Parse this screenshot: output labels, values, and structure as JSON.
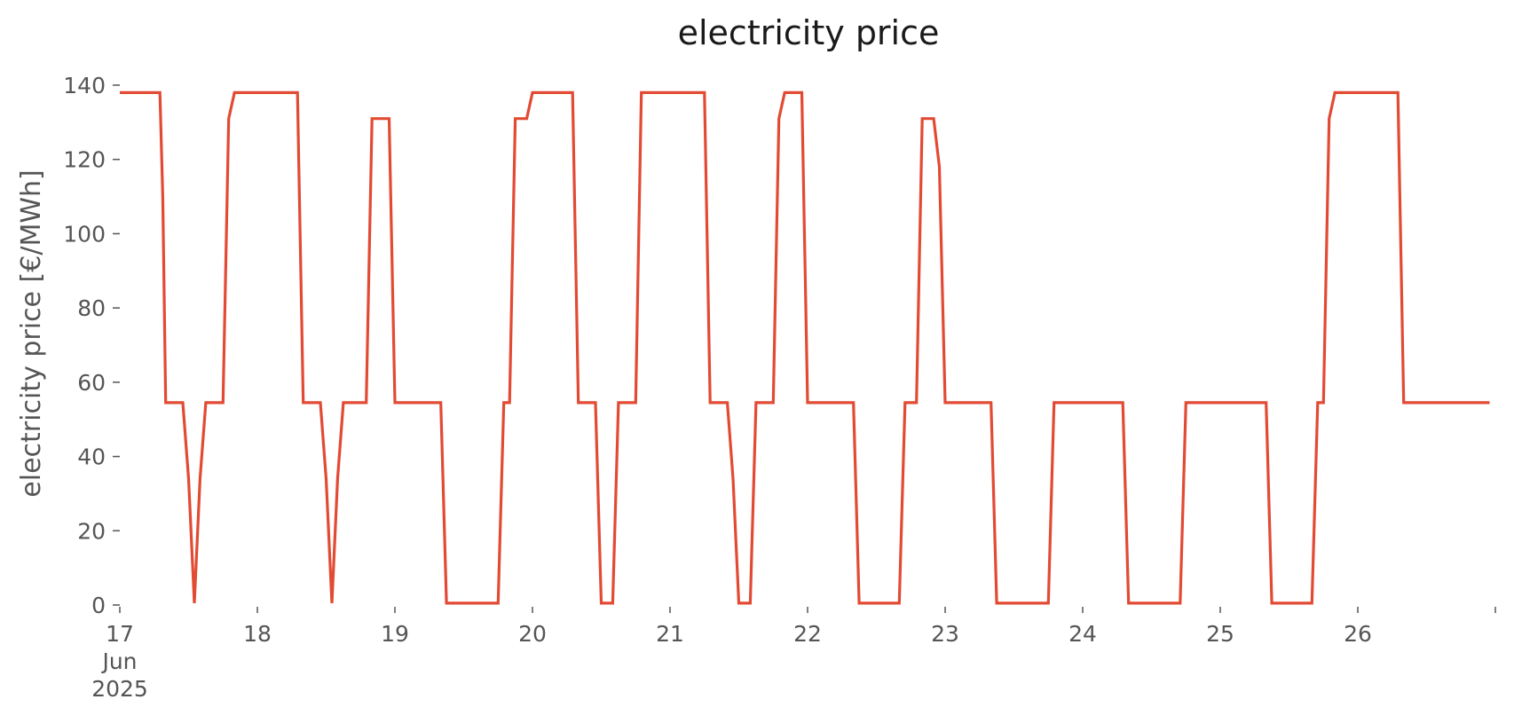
{
  "chart_data": {
    "type": "line",
    "title": "electricity price",
    "ylabel": "electricity price [€/MWh]",
    "xlabel": "",
    "xlim": [
      "2025-06-17 00:00",
      "2025-06-27 00:00"
    ],
    "ylim": [
      0,
      140
    ],
    "grid": false,
    "legend": "none",
    "colors": {
      "line": "#e24a33",
      "text": "#555555",
      "title": "#1a1a1a"
    },
    "y_ticks": [
      "0",
      "20",
      "40",
      "60",
      "80",
      "100",
      "120",
      "140"
    ],
    "y_tick_values": [
      0,
      20,
      40,
      60,
      80,
      100,
      120,
      140
    ],
    "x_ticks": [
      {
        "t": "2025-06-17 00:00",
        "lines": [
          "17",
          "Jun",
          "2025"
        ]
      },
      {
        "t": "2025-06-18 00:00",
        "lines": [
          "18"
        ]
      },
      {
        "t": "2025-06-19 00:00",
        "lines": [
          "19"
        ]
      },
      {
        "t": "2025-06-20 00:00",
        "lines": [
          "20"
        ]
      },
      {
        "t": "2025-06-21 00:00",
        "lines": [
          "21"
        ]
      },
      {
        "t": "2025-06-22 00:00",
        "lines": [
          "22"
        ]
      },
      {
        "t": "2025-06-23 00:00",
        "lines": [
          "23"
        ]
      },
      {
        "t": "2025-06-24 00:00",
        "lines": [
          "24"
        ]
      },
      {
        "t": "2025-06-25 00:00",
        "lines": [
          "25"
        ]
      },
      {
        "t": "2025-06-26 00:00",
        "lines": [
          "26"
        ]
      },
      {
        "t": "2025-06-27 00:00",
        "lines": [
          ""
        ]
      }
    ],
    "series": [
      {
        "points": [
          [
            "2025-06-17 00:00",
            138
          ],
          [
            "2025-06-17 07:00",
            138
          ],
          [
            "2025-06-17 07:30",
            110
          ],
          [
            "2025-06-17 08:00",
            54.5
          ],
          [
            "2025-06-17 11:00",
            54.5
          ],
          [
            "2025-06-17 12:00",
            34
          ],
          [
            "2025-06-17 13:00",
            0.5
          ],
          [
            "2025-06-17 14:00",
            34
          ],
          [
            "2025-06-17 15:00",
            54.5
          ],
          [
            "2025-06-17 18:00",
            54.5
          ],
          [
            "2025-06-17 19:00",
            131
          ],
          [
            "2025-06-17 20:00",
            138
          ],
          [
            "2025-06-18 07:00",
            138
          ],
          [
            "2025-06-18 08:00",
            54.5
          ],
          [
            "2025-06-18 11:00",
            54.5
          ],
          [
            "2025-06-18 12:00",
            34
          ],
          [
            "2025-06-18 13:00",
            0.5
          ],
          [
            "2025-06-18 14:00",
            34
          ],
          [
            "2025-06-18 15:00",
            54.5
          ],
          [
            "2025-06-18 19:00",
            54.5
          ],
          [
            "2025-06-18 20:00",
            131
          ],
          [
            "2025-06-18 23:00",
            131
          ],
          [
            "2025-06-19 00:00",
            54.5
          ],
          [
            "2025-06-19 08:00",
            54.5
          ],
          [
            "2025-06-19 09:00",
            0.5
          ],
          [
            "2025-06-19 18:00",
            0.5
          ],
          [
            "2025-06-19 19:00",
            54.5
          ],
          [
            "2025-06-19 20:00",
            54.5
          ],
          [
            "2025-06-19 21:00",
            131
          ],
          [
            "2025-06-19 23:00",
            131
          ],
          [
            "2025-06-20 00:00",
            138
          ],
          [
            "2025-06-20 07:00",
            138
          ],
          [
            "2025-06-20 08:00",
            54.5
          ],
          [
            "2025-06-20 11:00",
            54.5
          ],
          [
            "2025-06-20 12:00",
            0.5
          ],
          [
            "2025-06-20 14:00",
            0.5
          ],
          [
            "2025-06-20 15:00",
            54.5
          ],
          [
            "2025-06-20 18:00",
            54.5
          ],
          [
            "2025-06-20 19:00",
            138
          ],
          [
            "2025-06-21 06:00",
            138
          ],
          [
            "2025-06-21 07:00",
            54.5
          ],
          [
            "2025-06-21 10:00",
            54.5
          ],
          [
            "2025-06-21 11:00",
            34
          ],
          [
            "2025-06-21 12:00",
            0.5
          ],
          [
            "2025-06-21 14:00",
            0.5
          ],
          [
            "2025-06-21 15:00",
            54.5
          ],
          [
            "2025-06-21 18:00",
            54.5
          ],
          [
            "2025-06-21 19:00",
            131
          ],
          [
            "2025-06-21 20:00",
            138
          ],
          [
            "2025-06-21 23:00",
            138
          ],
          [
            "2025-06-22 00:00",
            54.5
          ],
          [
            "2025-06-22 08:00",
            54.5
          ],
          [
            "2025-06-22 09:00",
            0.5
          ],
          [
            "2025-06-22 16:00",
            0.5
          ],
          [
            "2025-06-22 17:00",
            54.5
          ],
          [
            "2025-06-22 19:00",
            54.5
          ],
          [
            "2025-06-22 20:00",
            131
          ],
          [
            "2025-06-22 22:00",
            131
          ],
          [
            "2025-06-22 23:00",
            118
          ],
          [
            "2025-06-23 00:00",
            54.5
          ],
          [
            "2025-06-23 08:00",
            54.5
          ],
          [
            "2025-06-23 09:00",
            0.5
          ],
          [
            "2025-06-23 18:00",
            0.5
          ],
          [
            "2025-06-23 19:00",
            54.5
          ],
          [
            "2025-06-24 07:00",
            54.5
          ],
          [
            "2025-06-24 08:00",
            0.5
          ],
          [
            "2025-06-24 17:00",
            0.5
          ],
          [
            "2025-06-24 18:00",
            54.5
          ],
          [
            "2025-06-25 08:00",
            54.5
          ],
          [
            "2025-06-25 09:00",
            0.5
          ],
          [
            "2025-06-25 16:00",
            0.5
          ],
          [
            "2025-06-25 17:00",
            54.5
          ],
          [
            "2025-06-25 18:00",
            54.5
          ],
          [
            "2025-06-25 19:00",
            131
          ],
          [
            "2025-06-25 20:00",
            138
          ],
          [
            "2025-06-26 07:00",
            138
          ],
          [
            "2025-06-26 08:00",
            54.5
          ],
          [
            "2025-06-26 23:00",
            54.5
          ]
        ]
      }
    ]
  }
}
